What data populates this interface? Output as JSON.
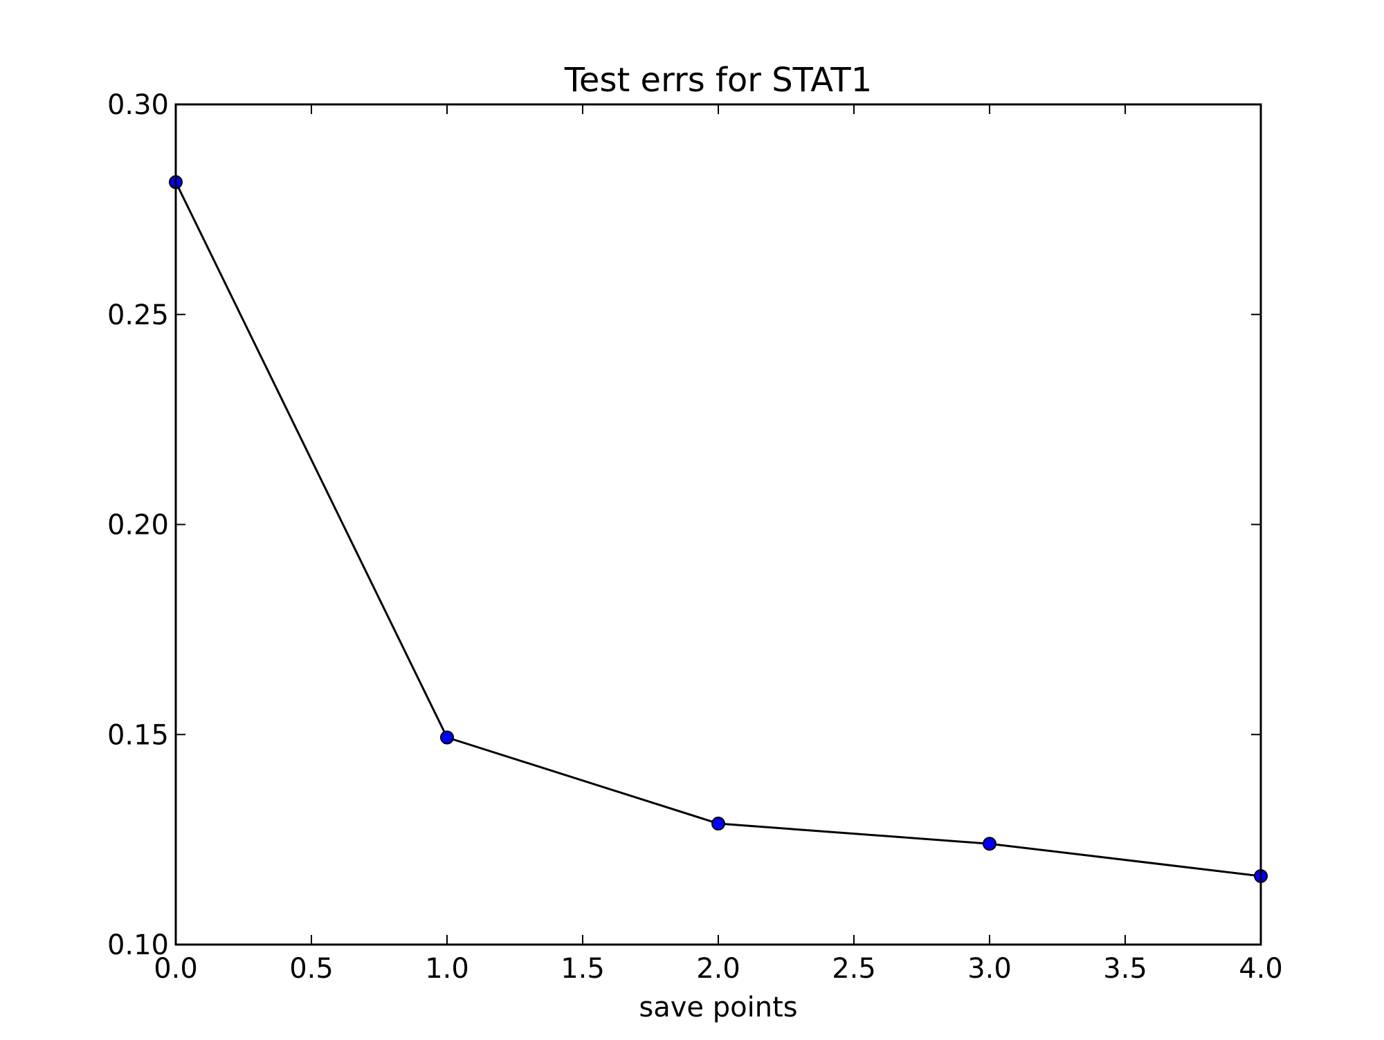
{
  "chart_data": {
    "type": "line",
    "title": "Test errs for STAT1",
    "xlabel": "save points",
    "ylabel": "",
    "xlim": [
      0.0,
      4.0
    ],
    "ylim": [
      0.1,
      0.3
    ],
    "xticks": [
      "0.0",
      "0.5",
      "1.0",
      "1.5",
      "2.0",
      "2.5",
      "3.0",
      "3.5",
      "4.0"
    ],
    "yticks": [
      "0.10",
      "0.15",
      "0.20",
      "0.25",
      "0.30"
    ],
    "grid": false,
    "series": [
      {
        "x": [
          0,
          1,
          2,
          3,
          4
        ],
        "y": [
          0.2815,
          0.1493,
          0.1288,
          0.124,
          0.1163
        ],
        "line_color": "#000000",
        "marker": "circle",
        "marker_color": "#0000ff"
      }
    ]
  }
}
